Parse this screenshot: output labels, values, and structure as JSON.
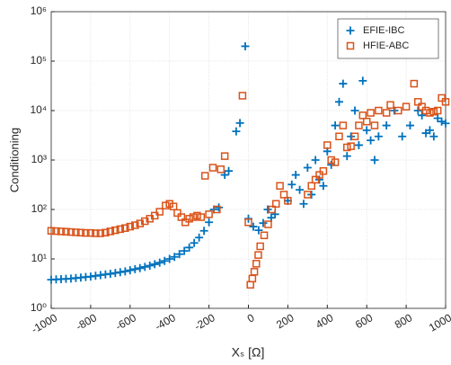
{
  "chart_data": {
    "type": "scatter",
    "xlabel": "Xₛ [Ω]",
    "ylabel": "Conditioning",
    "xlim": [
      -1000,
      1000
    ],
    "xticks": [
      -1000,
      -800,
      -600,
      -400,
      -200,
      0,
      200,
      400,
      600,
      800,
      1000
    ],
    "ylim": [
      1,
      1000000
    ],
    "log_y": true,
    "grid": true,
    "legend": "top-right",
    "yticks": [
      {
        "value": 1,
        "label": "10⁰"
      },
      {
        "value": 10,
        "label": "10¹"
      },
      {
        "value": 100,
        "label": "10²"
      },
      {
        "value": 1000,
        "label": "10³"
      },
      {
        "value": 10000,
        "label": "10⁴"
      },
      {
        "value": 100000,
        "label": "10⁵"
      },
      {
        "value": 1000000,
        "label": "10⁶"
      }
    ],
    "series": [
      {
        "name": "EFIE-IBC",
        "color": "#0072bd",
        "marker": "plus",
        "x": [
          -1000,
          -975,
          -950,
          -925,
          -900,
          -875,
          -850,
          -825,
          -800,
          -775,
          -750,
          -725,
          -700,
          -675,
          -650,
          -625,
          -600,
          -575,
          -550,
          -525,
          -500,
          -475,
          -450,
          -425,
          -400,
          -375,
          -350,
          -325,
          -300,
          -275,
          -250,
          -225,
          -200,
          -175,
          -150,
          -120,
          -100,
          -62,
          -43,
          -16,
          0,
          25,
          52,
          75,
          98,
          116,
          135,
          200,
          220,
          240,
          260,
          280,
          300,
          320,
          340,
          360,
          380,
          400,
          420,
          440,
          460,
          480,
          500,
          520,
          540,
          560,
          580,
          600,
          620,
          640,
          660,
          700,
          740,
          780,
          820,
          860,
          880,
          900,
          920,
          940,
          960,
          980,
          1000
        ],
        "values": [
          3.8,
          3.85,
          3.9,
          3.95,
          4.0,
          4.1,
          4.2,
          4.3,
          4.4,
          4.55,
          4.7,
          4.85,
          5.0,
          5.2,
          5.4,
          5.6,
          5.9,
          6.2,
          6.5,
          6.9,
          7.3,
          7.8,
          8.4,
          9.1,
          10,
          11,
          12.5,
          14.5,
          17,
          21,
          27,
          37,
          55,
          100,
          110,
          500,
          600,
          3800,
          5600,
          200000,
          65,
          45,
          38,
          53,
          100,
          68,
          80,
          150,
          320,
          500,
          250,
          130,
          700,
          200,
          1000,
          400,
          300,
          1500,
          800,
          5000,
          15000,
          35000,
          1200,
          3000,
          10000,
          2000,
          40000,
          4000,
          2500,
          1000,
          3000,
          5000,
          10000,
          3000,
          5000,
          10000,
          8000,
          3500,
          4000,
          3000,
          7000,
          6000,
          5500
        ]
      },
      {
        "name": "HFIE-ABC",
        "color": "#d95319",
        "marker": "square",
        "x": [
          -1000,
          -975,
          -950,
          -925,
          -900,
          -875,
          -850,
          -825,
          -800,
          -775,
          -750,
          -725,
          -700,
          -675,
          -650,
          -625,
          -600,
          -575,
          -550,
          -525,
          -500,
          -475,
          -450,
          -420,
          -400,
          -380,
          -360,
          -340,
          -320,
          -300,
          -280,
          -260,
          -240,
          -220,
          -200,
          -180,
          -160,
          -140,
          -120,
          -30,
          0,
          10,
          20,
          30,
          40,
          50,
          60,
          80,
          100,
          120,
          140,
          160,
          180,
          200,
          300,
          320,
          340,
          360,
          380,
          400,
          420,
          440,
          460,
          480,
          500,
          520,
          540,
          560,
          580,
          600,
          620,
          640,
          660,
          700,
          720,
          760,
          800,
          840,
          860,
          880,
          900,
          920,
          940,
          960,
          980,
          1000
        ],
        "values": [
          37,
          36.5,
          36,
          35.5,
          35,
          34.5,
          34,
          33.5,
          33.5,
          33,
          33,
          34,
          36,
          38,
          40,
          42,
          45,
          48,
          52,
          58,
          65,
          75,
          90,
          120,
          130,
          115,
          85,
          70,
          55,
          65,
          70,
          75,
          70,
          480,
          80,
          700,
          100,
          650,
          1200,
          20000,
          55,
          3,
          4,
          5.5,
          8,
          12,
          18,
          30,
          50,
          100,
          130,
          300,
          200,
          150,
          200,
          300,
          400,
          500,
          600,
          2000,
          1000,
          900,
          3000,
          5000,
          1800,
          1900,
          3000,
          5000,
          8000,
          6000,
          9000,
          5000,
          10000,
          9000,
          13000,
          10000,
          12000,
          35000,
          15000,
          12000,
          10000,
          9000,
          9500,
          10000,
          18000,
          15000
        ]
      }
    ]
  }
}
